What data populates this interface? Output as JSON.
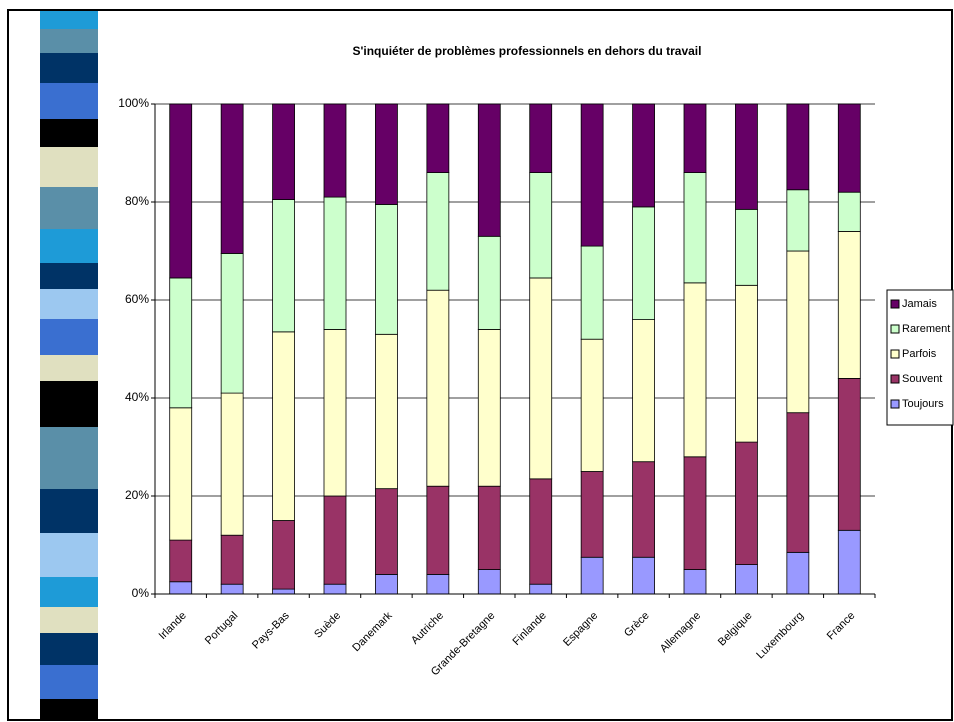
{
  "chart_data": {
    "type": "stacked_bar_100",
    "title": "S'inquiéter de problèmes professionnels en dehors du travail",
    "categories": [
      "Irlande",
      "Portugal",
      "Pays-Bas",
      "Suède",
      "Danemark",
      "Autriche",
      "Grande-Bretagne",
      "Finlande",
      "Espagne",
      "Grèce",
      "Allemagne",
      "Belgique",
      "Luxembourg",
      "France"
    ],
    "series": [
      {
        "name": "Toujours",
        "color": "#9999ff",
        "values": [
          2.5,
          2,
          1,
          2,
          4,
          4,
          5,
          2,
          7.5,
          7.5,
          5,
          6,
          8.5,
          13
        ]
      },
      {
        "name": "Souvent",
        "color": "#993366",
        "values": [
          8.5,
          10,
          14,
          18,
          17.5,
          18,
          17,
          21.5,
          17.5,
          19.5,
          23,
          25,
          28.5,
          31
        ]
      },
      {
        "name": "Parfois",
        "color": "#ffffcc",
        "values": [
          27,
          29,
          38.5,
          34,
          31.5,
          40,
          32,
          41,
          27,
          29,
          35.5,
          32,
          33,
          30
        ]
      },
      {
        "name": "Rarement",
        "color": "#ccffcc",
        "values": [
          26.5,
          28.5,
          27,
          27,
          26.5,
          24,
          19,
          21.5,
          19,
          23,
          22.5,
          15.5,
          12.5,
          8
        ]
      },
      {
        "name": "Jamais",
        "color": "#660066",
        "values": [
          35.5,
          30.5,
          19.5,
          19,
          20.5,
          14,
          27,
          14,
          29,
          21,
          14,
          21.5,
          17.5,
          18
        ]
      }
    ],
    "ylim": [
      0,
      100
    ],
    "yticks": [
      {
        "value": 0,
        "label": "0%"
      },
      {
        "value": 20,
        "label": "20%"
      },
      {
        "value": 40,
        "label": "40%"
      },
      {
        "value": 60,
        "label": "60%"
      },
      {
        "value": 80,
        "label": "80%"
      },
      {
        "value": 100,
        "label": "100%"
      }
    ],
    "grid": true,
    "legend": "right"
  }
}
